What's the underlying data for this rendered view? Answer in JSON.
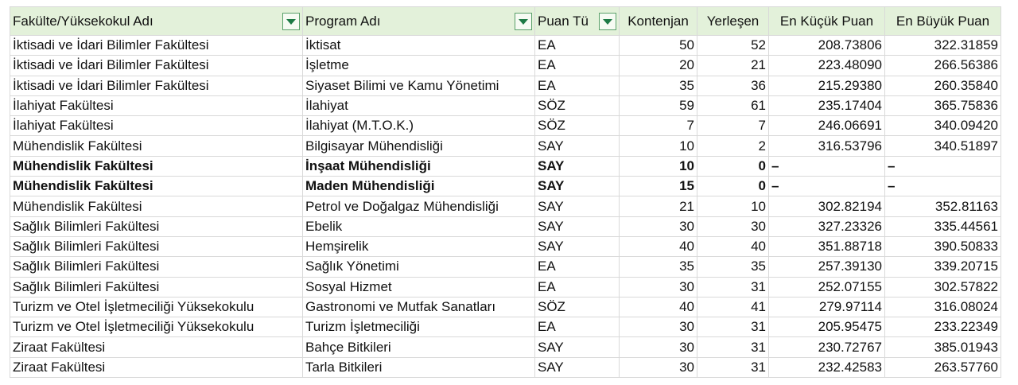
{
  "table": {
    "headers": [
      "Fakülte/Yüksekokul Adı",
      "Program Adı",
      "Puan Tü",
      "Kontenjan",
      "Yerleşen",
      "En Küçük Puan",
      "En Büyük Puan"
    ],
    "bold_rows": [
      6,
      7
    ],
    "rows": [
      [
        "İktisadi ve İdari Bilimler Fakültesi",
        "İktisat",
        "EA",
        50,
        52,
        "208.73806",
        "322.31859"
      ],
      [
        "İktisadi ve İdari Bilimler Fakültesi",
        "İşletme",
        "EA",
        20,
        21,
        "223.48090",
        "266.56386"
      ],
      [
        "İktisadi ve İdari Bilimler Fakültesi",
        "Siyaset Bilimi ve Kamu Yönetimi",
        "EA",
        35,
        36,
        "215.29380",
        "260.35840"
      ],
      [
        "İlahiyat Fakültesi",
        "İlahiyat",
        "SÖZ",
        59,
        61,
        "235.17404",
        "365.75836"
      ],
      [
        "İlahiyat Fakültesi",
        "İlahiyat (M.T.O.K.)",
        "SÖZ",
        7,
        7,
        "246.06691",
        "340.09420"
      ],
      [
        "Mühendislik Fakültesi",
        "Bilgisayar Mühendisliği",
        "SAY",
        10,
        2,
        "316.53796",
        "340.51897"
      ],
      [
        "Mühendislik Fakültesi",
        "İnşaat Mühendisliği",
        "SAY",
        10,
        0,
        "–",
        "–"
      ],
      [
        "Mühendislik Fakültesi",
        "Maden Mühendisliği",
        "SAY",
        15,
        0,
        "–",
        "–"
      ],
      [
        "Mühendislik Fakültesi",
        "Petrol ve Doğalgaz Mühendisliği",
        "SAY",
        21,
        10,
        "302.82194",
        "352.81163"
      ],
      [
        "Sağlık Bilimleri Fakültesi",
        "Ebelik",
        "SAY",
        30,
        30,
        "327.23326",
        "335.44561"
      ],
      [
        "Sağlık Bilimleri Fakültesi",
        "Hemşirelik",
        "SAY",
        40,
        40,
        "351.88718",
        "390.50833"
      ],
      [
        "Sağlık Bilimleri Fakültesi",
        "Sağlık Yönetimi",
        "EA",
        35,
        35,
        "257.39130",
        "339.20715"
      ],
      [
        "Sağlık Bilimleri Fakültesi",
        "Sosyal Hizmet",
        "EA",
        30,
        31,
        "252.07155",
        "302.57822"
      ],
      [
        "Turizm ve Otel İşletmeciliği Yüksekokulu",
        "Gastronomi ve Mutfak Sanatları",
        "SÖZ",
        40,
        41,
        "279.97114",
        "316.08024"
      ],
      [
        "Turizm ve Otel İşletmeciliği Yüksekokulu",
        "Turizm İşletmeciliği",
        "EA",
        30,
        31,
        "205.95475",
        "233.22349"
      ],
      [
        "Ziraat Fakültesi",
        "Bahçe Bitkileri",
        "SAY",
        30,
        31,
        "230.72767",
        "385.01943"
      ],
      [
        "Ziraat Fakültesi",
        "Tarla Bitkileri",
        "SAY",
        30,
        31,
        "232.42583",
        "263.57760"
      ]
    ]
  }
}
